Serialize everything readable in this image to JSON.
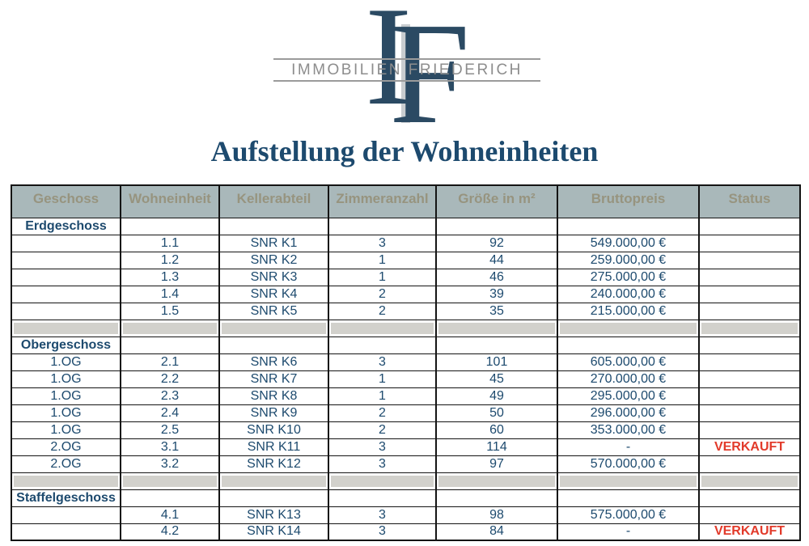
{
  "logo": {
    "monogram_i": "I",
    "monogram_f": "F",
    "banner_text": "IMMOBILIEN FRIEDERICH"
  },
  "title": "Aufstellung der Wohneinheiten",
  "table": {
    "columns": [
      "Geschoss",
      "Wohneinheit",
      "Kellerabteil",
      "Zimmeranzahl",
      "Größe in m²",
      "Bruttopreis",
      "Status"
    ],
    "rows": [
      {
        "type": "section",
        "cells": [
          "Erdgeschoss",
          "",
          "",
          "",
          "",
          "",
          ""
        ]
      },
      {
        "type": "data",
        "cells": [
          "",
          "1.1",
          "SNR K1",
          "3",
          "92",
          "549.000,00 €",
          ""
        ]
      },
      {
        "type": "data",
        "cells": [
          "",
          "1.2",
          "SNR K2",
          "1",
          "44",
          "259.000,00 €",
          ""
        ]
      },
      {
        "type": "data",
        "cells": [
          "",
          "1.3",
          "SNR K3",
          "1",
          "46",
          "275.000,00 €",
          ""
        ]
      },
      {
        "type": "data",
        "cells": [
          "",
          "1.4",
          "SNR K4",
          "2",
          "39",
          "240.000,00 €",
          ""
        ]
      },
      {
        "type": "data",
        "cells": [
          "",
          "1.5",
          "SNR K5",
          "2",
          "35",
          "215.000,00 €",
          ""
        ]
      },
      {
        "type": "separator",
        "cells": [
          "",
          "",
          "",
          "",
          "",
          "",
          ""
        ]
      },
      {
        "type": "section",
        "cells": [
          "Obergeschoss",
          "",
          "",
          "",
          "",
          "",
          ""
        ]
      },
      {
        "type": "data",
        "cells": [
          "1.OG",
          "2.1",
          "SNR K6",
          "3",
          "101",
          "605.000,00 €",
          ""
        ]
      },
      {
        "type": "data",
        "cells": [
          "1.OG",
          "2.2",
          "SNR K7",
          "1",
          "45",
          "270.000,00 €",
          ""
        ]
      },
      {
        "type": "data",
        "cells": [
          "1.OG",
          "2.3",
          "SNR K8",
          "1",
          "49",
          "295.000,00 €",
          ""
        ]
      },
      {
        "type": "data",
        "cells": [
          "1.OG",
          "2.4",
          "SNR K9",
          "2",
          "50",
          "296.000,00 €",
          ""
        ]
      },
      {
        "type": "data",
        "cells": [
          "1.OG",
          "2.5",
          "SNR K10",
          "2",
          "60",
          "353.000,00 €",
          ""
        ]
      },
      {
        "type": "data",
        "cells": [
          "2.OG",
          "3.1",
          "SNR K11",
          "3",
          "114",
          "-",
          "VERKAUFT"
        ]
      },
      {
        "type": "data",
        "cells": [
          "2.OG",
          "3.2",
          "SNR K12",
          "3",
          "97",
          "570.000,00 €",
          ""
        ]
      },
      {
        "type": "separator",
        "cells": [
          "",
          "",
          "",
          "",
          "",
          "",
          ""
        ]
      },
      {
        "type": "section",
        "cells": [
          "Staffelgeschoss",
          "",
          "",
          "",
          "",
          "",
          ""
        ]
      },
      {
        "type": "data",
        "cells": [
          "",
          "4.1",
          "SNR K13",
          "3",
          "98",
          "575.000,00 €",
          ""
        ]
      },
      {
        "type": "data",
        "cells": [
          "",
          "4.2",
          "SNR K14",
          "3",
          "84",
          "-",
          "VERKAUFT"
        ]
      }
    ]
  },
  "colors": {
    "brand_navy": "#2b4a63",
    "table_text": "#1d4a6e",
    "header_bg": "#a9b8ba",
    "header_text": "#97947f",
    "separator_gray": "#d2d1cc",
    "sold_red": "#e23a2a"
  }
}
